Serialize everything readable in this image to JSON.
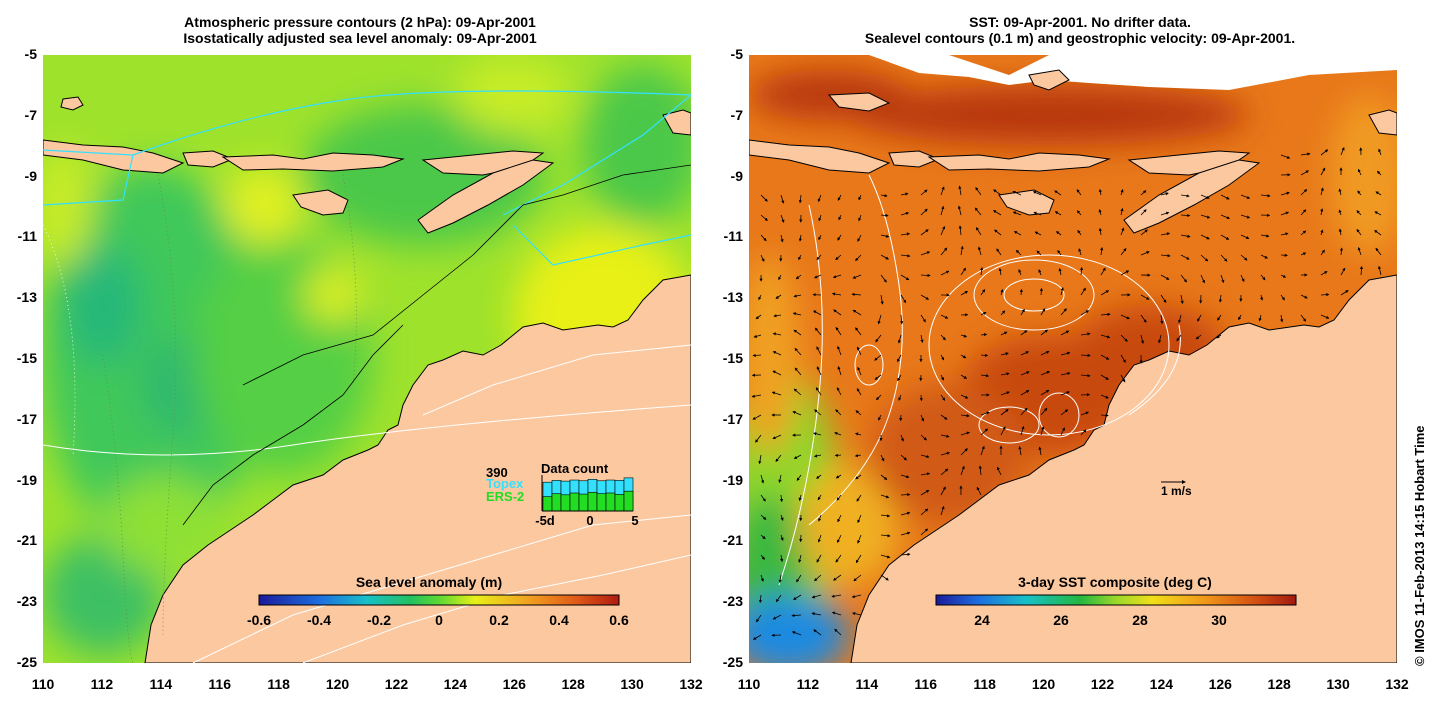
{
  "left_panel": {
    "title_line1": "Atmospheric pressure contours (2 hPa): 09-Apr-2001",
    "title_line2": "Isostatically adjusted sea level anomaly: 09-Apr-2001",
    "colorbar_label": "Sea level anomaly (m)",
    "colorbar_ticks": [
      "-0.6",
      "-0.4",
      "-0.2",
      "0",
      "0.2",
      "0.4",
      "0.6"
    ],
    "data_count": {
      "title": "Data count",
      "max": "390",
      "topex_label": "Topex",
      "ers_label": "ERS-2",
      "x_ticks": [
        "-5d",
        "0",
        "5"
      ],
      "topex_color": "#33e0ff",
      "ers_color": "#22dd22",
      "topex_levels": [
        0.8,
        0.85,
        0.83,
        0.86,
        0.84,
        0.88,
        0.84,
        0.86,
        0.85,
        0.92
      ],
      "ers_levels": [
        0.4,
        0.48,
        0.45,
        0.5,
        0.47,
        0.52,
        0.48,
        0.5,
        0.46,
        0.55
      ]
    }
  },
  "right_panel": {
    "title_line1": "SST: 09-Apr-2001. No drifter data.",
    "title_line2": "Sealevel contours (0.1 m) and geostrophic velocity: 09-Apr-2001.",
    "colorbar_label": "3-day SST composite (deg C)",
    "colorbar_ticks": [
      "24",
      "26",
      "28",
      "30"
    ],
    "velocity_scale_label": "1 m/s"
  },
  "axes": {
    "y_ticks": [
      "-5",
      "-7",
      "-9",
      "-11",
      "-13",
      "-15",
      "-17",
      "-19",
      "-21",
      "-23",
      "-25"
    ],
    "x_ticks": [
      "110",
      "112",
      "114",
      "116",
      "118",
      "120",
      "122",
      "124",
      "126",
      "128",
      "130",
      "132"
    ],
    "lon_range": [
      110,
      132
    ],
    "lat_range": [
      -25,
      -5
    ]
  },
  "colors": {
    "land": "#fcc8a0",
    "coast": "#000000",
    "sla_base": "#b0e81e",
    "sst_base": "#e06a12"
  },
  "credit": "© IMOS 11-Feb-2013 14:15 Hobart Time"
}
